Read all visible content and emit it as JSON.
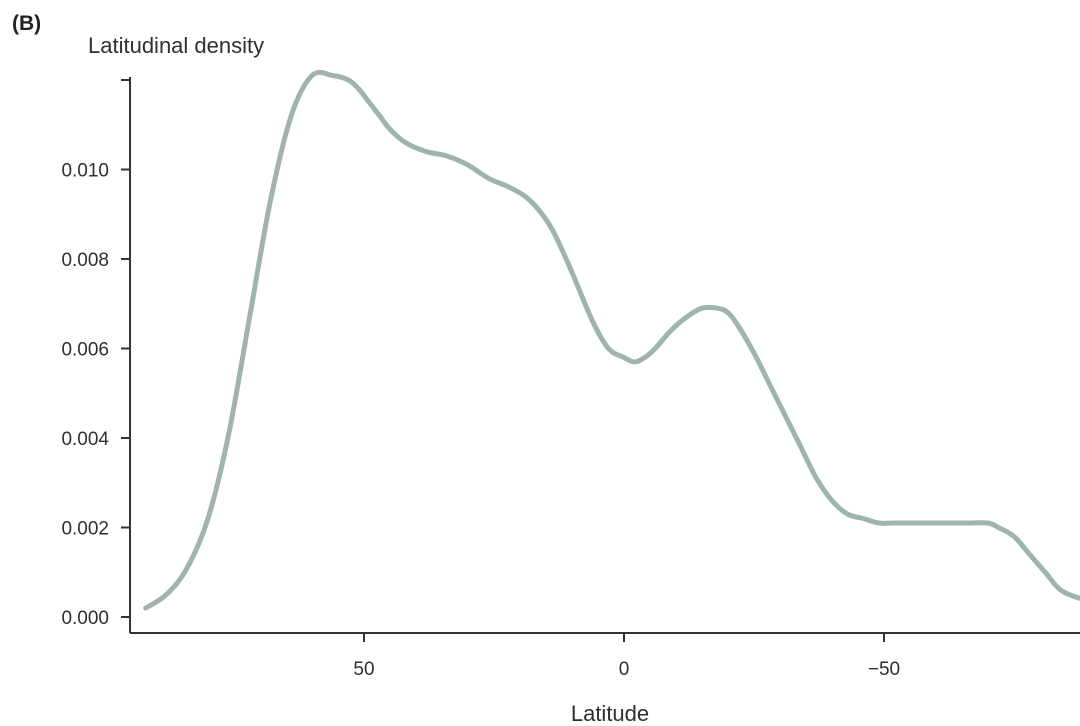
{
  "panel_label": "(B)",
  "chart_data": {
    "type": "line",
    "title": "",
    "ylabel": "Latitudinal density",
    "xlabel": "Latitude",
    "x_reversed": true,
    "xlim": [
      94,
      -88
    ],
    "ylim": [
      0,
      0.012
    ],
    "x_ticks": [
      50,
      0,
      -50
    ],
    "x_tick_labels": [
      "50",
      "0",
      "−50"
    ],
    "y_ticks": [
      0,
      0.002,
      0.004,
      0.006,
      0.008,
      0.01
    ],
    "y_tick_labels": [
      "0.000",
      "0.002",
      "0.004",
      "0.006",
      "0.008",
      "0.010"
    ],
    "grid": false,
    "line_color": "#9fb5ac",
    "series": [
      {
        "x": [
          92,
          88,
          84,
          80,
          76,
          72,
          68,
          64,
          60,
          56,
          53,
          51,
          49,
          47,
          45,
          42,
          38,
          34,
          30,
          26,
          22,
          18,
          14,
          10,
          6,
          3,
          0,
          -2,
          -4,
          -6,
          -9,
          -12,
          -15,
          -18,
          -20,
          -22,
          -25,
          -28,
          -31,
          -34,
          -37,
          -40,
          -43,
          -46,
          -49,
          -52,
          -55,
          -58,
          -62,
          -66,
          -70,
          -72,
          -75,
          -78,
          -81,
          -84,
          -88
        ],
        "y": [
          0.0002,
          0.0005,
          0.0011,
          0.0022,
          0.0041,
          0.0067,
          0.0093,
          0.0112,
          0.0121,
          0.0121,
          0.012,
          0.0118,
          0.0115,
          0.0112,
          0.0109,
          0.0106,
          0.0104,
          0.0103,
          0.0101,
          0.0098,
          0.0096,
          0.0093,
          0.0087,
          0.0077,
          0.0066,
          0.006,
          0.0058,
          0.0057,
          0.0058,
          0.006,
          0.0064,
          0.0067,
          0.0069,
          0.0069,
          0.0068,
          0.0065,
          0.0059,
          0.0052,
          0.0045,
          0.0038,
          0.0031,
          0.0026,
          0.0023,
          0.0022,
          0.0021,
          0.0021,
          0.0021,
          0.0021,
          0.0021,
          0.0021,
          0.0021,
          0.002,
          0.0018,
          0.0014,
          0.001,
          0.0006,
          0.0004
        ]
      }
    ]
  }
}
